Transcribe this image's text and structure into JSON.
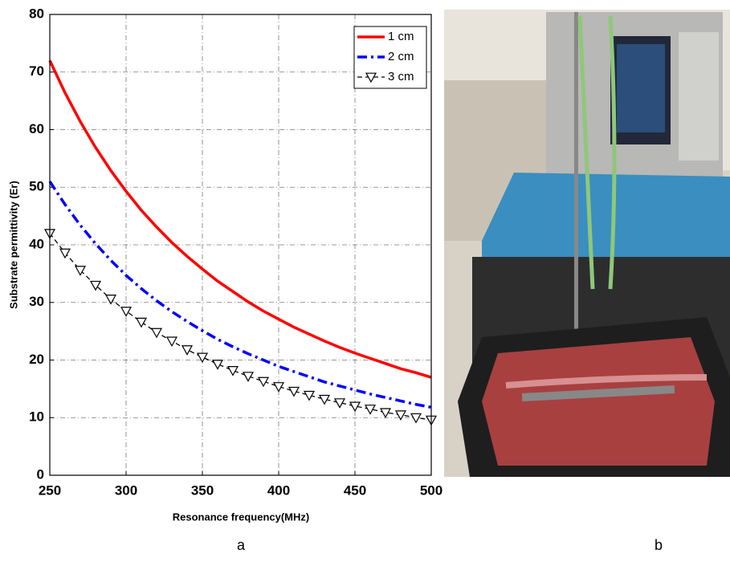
{
  "chart_data": {
    "type": "line",
    "xlabel": "Resonance frequency(MHz)",
    "ylabel": "Substrate permittivity (Er)",
    "x": [
      250,
      260,
      270,
      280,
      290,
      300,
      310,
      320,
      330,
      340,
      350,
      360,
      370,
      380,
      390,
      400,
      410,
      420,
      430,
      440,
      450,
      460,
      470,
      480,
      490,
      500
    ],
    "series": [
      {
        "name": "1 cm",
        "color": "#ff0000",
        "dash": "solid",
        "marker": null,
        "values": [
          72,
          66.4,
          61.4,
          56.9,
          52.9,
          49.3,
          46.0,
          43.1,
          40.4,
          38.0,
          35.8,
          33.7,
          31.9,
          30.1,
          28.5,
          27.1,
          25.7,
          24.5,
          23.3,
          22.2,
          21.2,
          20.3,
          19.4,
          18.5,
          17.8,
          17.0
        ]
      },
      {
        "name": "2 cm",
        "color": "#0000ff",
        "dash": "dashdot",
        "marker": null,
        "values": [
          51,
          47.0,
          43.4,
          40.2,
          37.3,
          34.7,
          32.4,
          30.3,
          28.4,
          26.7,
          25.1,
          23.6,
          22.3,
          21.1,
          20.0,
          18.9,
          18.0,
          17.1,
          16.2,
          15.5,
          14.8,
          14.1,
          13.5,
          12.9,
          12.3,
          11.8
        ]
      },
      {
        "name": "3 cm",
        "color": "#000000",
        "dash": "dashed",
        "marker": "triangle-down",
        "values": [
          42,
          38.6,
          35.6,
          33.0,
          30.6,
          28.5,
          26.6,
          24.8,
          23.3,
          21.8,
          20.5,
          19.3,
          18.2,
          17.2,
          16.3,
          15.4,
          14.6,
          13.9,
          13.2,
          12.6,
          12.0,
          11.5,
          10.9,
          10.5,
          10.0,
          9.6
        ]
      }
    ],
    "xlim": [
      250,
      500
    ],
    "xticks": [
      250,
      300,
      350,
      400,
      450,
      500
    ],
    "ylim": [
      0,
      80
    ],
    "yticks": [
      0,
      10,
      20,
      30,
      40,
      50,
      60,
      70,
      80
    ],
    "grid": true,
    "legend": "upper right"
  },
  "panel_labels": [
    "a",
    "b"
  ]
}
